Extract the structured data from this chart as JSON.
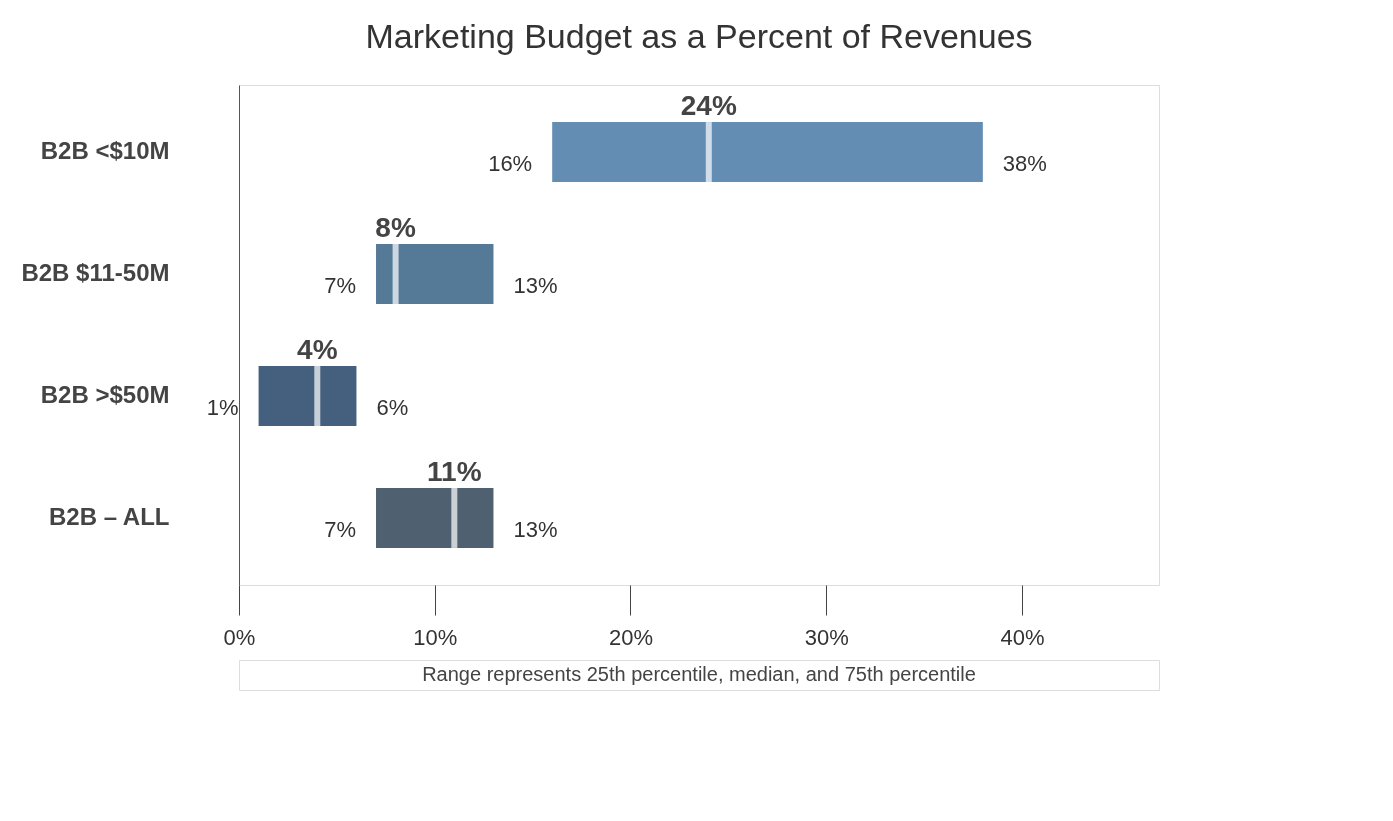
{
  "chart_data": {
    "type": "box",
    "orientation": "horizontal",
    "title": "Marketing Budget as a Percent of Revenues",
    "categories": [
      "B2B <$10M",
      "B2B $11-50M",
      "B2B >$50M",
      "B2B – ALL"
    ],
    "boxes": [
      {
        "low": 16,
        "q1": 16,
        "median": 24,
        "q3": 38,
        "high": 38
      },
      {
        "low": 7,
        "q1": 7,
        "median": 8,
        "q3": 13,
        "high": 13
      },
      {
        "low": 1,
        "q1": 1,
        "median": 4,
        "q3": 6,
        "high": 6
      },
      {
        "low": 7,
        "q1": 7,
        "median": 11,
        "q3": 13,
        "high": 13
      }
    ],
    "value_labels": [
      [
        "16%",
        "24%",
        "38%"
      ],
      [
        "7%",
        "8%",
        "13%"
      ],
      [
        "1%",
        "4%",
        "6%"
      ],
      [
        "7%",
        "11%",
        "13%"
      ]
    ],
    "colors": [
      "#648db3",
      "#557a98",
      "#45607f",
      "#4f6170"
    ],
    "xlim": [
      0,
      47
    ],
    "xticks": [
      {
        "value": 0,
        "label": "0%"
      },
      {
        "value": 10,
        "label": "10%"
      },
      {
        "value": 20,
        "label": "20%"
      },
      {
        "value": 30,
        "label": "30%"
      },
      {
        "value": 40,
        "label": "40%"
      }
    ],
    "grid": false,
    "annotations": [
      "Range represents 25th percentile, median, and 75th percentile"
    ]
  }
}
